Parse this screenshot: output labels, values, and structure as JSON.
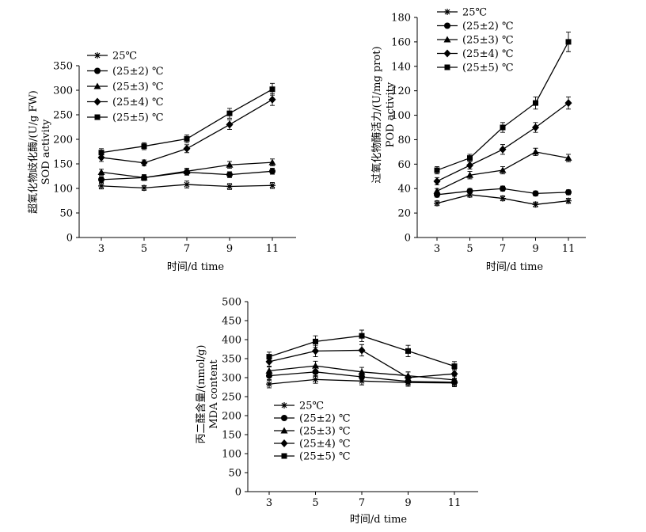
{
  "chart_data": [
    {
      "type": "line",
      "title": "",
      "xlabel": "时间/d time",
      "ylabel_line1": "超氧化物歧化酶/(U/g FW)",
      "ylabel_line2": "SOD activity",
      "x": [
        3,
        5,
        7,
        9,
        11
      ],
      "xticks": [
        "3",
        "5",
        "7",
        "9",
        "11"
      ],
      "ylim": [
        0,
        350
      ],
      "yticks": [
        "0",
        "50",
        "100",
        "150",
        "200",
        "250",
        "300",
        "350"
      ],
      "yticks_values": [
        0,
        50,
        100,
        150,
        200,
        250,
        300,
        350
      ],
      "legend_position": "top-left",
      "series": [
        {
          "name": "25℃",
          "marker": "star",
          "values": [
            105,
            101,
            108,
            104,
            106
          ],
          "errors": [
            6,
            5,
            7,
            6,
            6
          ]
        },
        {
          "name": "(25±2) ℃",
          "marker": "circle",
          "values": [
            118,
            122,
            133,
            128,
            135
          ],
          "errors": [
            6,
            6,
            6,
            6,
            6
          ]
        },
        {
          "name": "(25±3) ℃",
          "marker": "triangle",
          "values": [
            133,
            122,
            135,
            148,
            153
          ],
          "errors": [
            6,
            6,
            6,
            7,
            7
          ]
        },
        {
          "name": "(25±4) ℃",
          "marker": "diamond",
          "values": [
            163,
            152,
            181,
            230,
            281
          ],
          "errors": [
            8,
            6,
            8,
            10,
            12
          ]
        },
        {
          "name": "(25±5) ℃",
          "marker": "square",
          "values": [
            173,
            186,
            201,
            253,
            302
          ],
          "errors": [
            8,
            7,
            8,
            10,
            12
          ]
        }
      ]
    },
    {
      "type": "line",
      "title": "",
      "xlabel": "时间/d time",
      "ylabel_line1": "过氧化物酶活力/(U/mg prot)",
      "ylabel_line2": "POD activity",
      "x": [
        3,
        5,
        7,
        9,
        11
      ],
      "xticks": [
        "3",
        "5",
        "7",
        "9",
        "11"
      ],
      "ylim": [
        0,
        180
      ],
      "yticks": [
        "0",
        "20",
        "40",
        "60",
        "80",
        "100",
        "120",
        "140",
        "160",
        "180"
      ],
      "yticks_values": [
        0,
        20,
        40,
        60,
        80,
        100,
        120,
        140,
        160,
        180
      ],
      "legend_position": "top-left",
      "series": [
        {
          "name": "25℃",
          "marker": "star",
          "values": [
            28,
            35,
            32,
            27,
            30
          ],
          "errors": [
            2,
            2,
            2,
            2,
            2
          ]
        },
        {
          "name": "(25±2) ℃",
          "marker": "circle",
          "values": [
            35,
            38,
            40,
            36,
            37
          ],
          "errors": [
            2,
            2,
            2,
            2,
            2
          ]
        },
        {
          "name": "(25±3) ℃",
          "marker": "triangle",
          "values": [
            38,
            51,
            55,
            70,
            65
          ],
          "errors": [
            2,
            3,
            3,
            3,
            3
          ]
        },
        {
          "name": "(25±4) ℃",
          "marker": "diamond",
          "values": [
            46,
            59,
            72,
            90,
            110
          ],
          "errors": [
            3,
            3,
            4,
            4,
            5
          ]
        },
        {
          "name": "(25±5) ℃",
          "marker": "square",
          "values": [
            55,
            65,
            90,
            110,
            160
          ],
          "errors": [
            3,
            3,
            4,
            5,
            8
          ]
        }
      ]
    },
    {
      "type": "line",
      "title": "",
      "xlabel": "时间/d time",
      "ylabel_line1": "丙二醛含量/(nmol/g)",
      "ylabel_line2": "MDA content",
      "x": [
        3,
        5,
        7,
        9,
        11
      ],
      "xticks": [
        "3",
        "5",
        "7",
        "9",
        "11"
      ],
      "ylim": [
        0,
        500
      ],
      "yticks": [
        "0",
        "50",
        "100",
        "150",
        "200",
        "250",
        "300",
        "350",
        "400",
        "450",
        "500"
      ],
      "yticks_values": [
        0,
        50,
        100,
        150,
        200,
        250,
        300,
        350,
        400,
        450,
        500
      ],
      "legend_position": "bottom-left",
      "series": [
        {
          "name": "25℃",
          "marker": "star",
          "values": [
            283,
            295,
            291,
            287,
            286
          ],
          "errors": [
            10,
            10,
            10,
            10,
            10
          ]
        },
        {
          "name": "(25±2) ℃",
          "marker": "circle",
          "values": [
            305,
            315,
            302,
            290,
            288
          ],
          "errors": [
            10,
            12,
            10,
            10,
            10
          ]
        },
        {
          "name": "(25±3) ℃",
          "marker": "triangle",
          "values": [
            318,
            331,
            315,
            305,
            294
          ],
          "errors": [
            10,
            12,
            12,
            10,
            10
          ]
        },
        {
          "name": "(25±4) ℃",
          "marker": "diamond",
          "values": [
            342,
            370,
            372,
            300,
            310
          ],
          "errors": [
            12,
            15,
            15,
            15,
            12
          ]
        },
        {
          "name": "(25±5) ℃",
          "marker": "square",
          "values": [
            355,
            395,
            410,
            370,
            330
          ],
          "errors": [
            12,
            15,
            15,
            15,
            12
          ]
        }
      ]
    }
  ]
}
